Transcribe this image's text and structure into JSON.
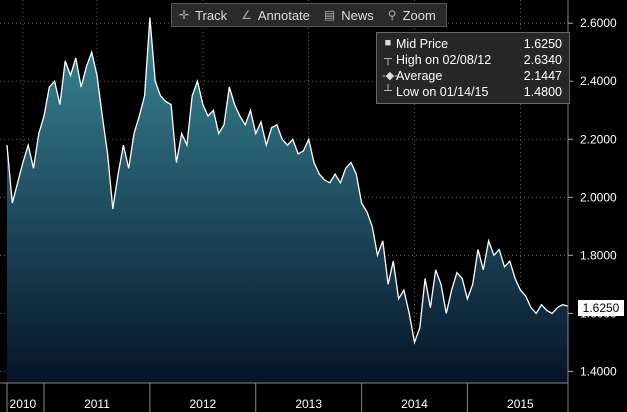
{
  "toolbar": {
    "track_label": "Track",
    "annotate_label": "Annotate",
    "news_label": "News",
    "zoom_label": "Zoom"
  },
  "legend": {
    "mid_label": "Mid Price",
    "mid_value": "1.6250",
    "high_label": "High on 02/08/12",
    "high_value": "2.6340",
    "avg_label": "Average",
    "avg_value": "2.1447",
    "low_label": "Low on 01/14/15",
    "low_value": "1.4800"
  },
  "last_price_tag": "1.6250",
  "colors": {
    "background": "#000000",
    "line": "#ffffff",
    "area_top": "#3b8a99",
    "area_bottom": "#061428",
    "grid": "#7a7a7a"
  },
  "chart_data": {
    "type": "area",
    "ylim": [
      1.36,
      2.68
    ],
    "yticks": [
      "1.4000",
      "1.6000",
      "1.8000",
      "2.0000",
      "2.2000",
      "2.4000",
      "2.6000"
    ],
    "ytick_values": [
      1.4,
      1.6,
      1.8,
      2.0,
      2.2,
      2.4,
      2.6
    ],
    "xlim": [
      2010.65,
      2015.95
    ],
    "xticks": [
      "2010",
      "2011",
      "2012",
      "2013",
      "2014",
      "2015"
    ],
    "xtick_values": [
      2010.8,
      2011.5,
      2012.5,
      2013.5,
      2014.5,
      2015.5
    ],
    "grid": true,
    "series": [
      {
        "name": "Mid Price",
        "x": [
          2010.65,
          2010.7,
          2010.75,
          2010.8,
          2010.85,
          2010.9,
          2010.95,
          2011.0,
          2011.05,
          2011.1,
          2011.15,
          2011.2,
          2011.25,
          2011.3,
          2011.35,
          2011.4,
          2011.45,
          2011.5,
          2011.55,
          2011.6,
          2011.65,
          2011.7,
          2011.75,
          2011.8,
          2011.85,
          2011.9,
          2011.95,
          2012.0,
          2012.05,
          2012.1,
          2012.15,
          2012.2,
          2012.25,
          2012.3,
          2012.35,
          2012.4,
          2012.45,
          2012.5,
          2012.55,
          2012.6,
          2012.65,
          2012.7,
          2012.75,
          2012.8,
          2012.85,
          2012.9,
          2012.95,
          2013.0,
          2013.05,
          2013.1,
          2013.15,
          2013.2,
          2013.25,
          2013.3,
          2013.35,
          2013.4,
          2013.45,
          2013.5,
          2013.55,
          2013.6,
          2013.65,
          2013.7,
          2013.75,
          2013.8,
          2013.85,
          2013.9,
          2013.95,
          2014.0,
          2014.05,
          2014.1,
          2014.15,
          2014.2,
          2014.25,
          2014.3,
          2014.35,
          2014.4,
          2014.45,
          2014.5,
          2014.55,
          2014.6,
          2014.65,
          2014.7,
          2014.75,
          2014.8,
          2014.85,
          2014.9,
          2014.95,
          2015.0,
          2015.05,
          2015.1,
          2015.15,
          2015.2,
          2015.25,
          2015.3,
          2015.35,
          2015.4,
          2015.45,
          2015.5,
          2015.55,
          2015.6,
          2015.65,
          2015.7,
          2015.75,
          2015.8,
          2015.85,
          2015.9,
          2015.95
        ],
        "values": [
          2.18,
          1.98,
          2.05,
          2.12,
          2.18,
          2.1,
          2.22,
          2.28,
          2.38,
          2.4,
          2.32,
          2.47,
          2.42,
          2.48,
          2.38,
          2.45,
          2.5,
          2.42,
          2.28,
          2.15,
          1.96,
          2.08,
          2.18,
          2.1,
          2.22,
          2.28,
          2.35,
          2.62,
          2.4,
          2.35,
          2.33,
          2.32,
          2.12,
          2.22,
          2.18,
          2.35,
          2.4,
          2.32,
          2.28,
          2.3,
          2.22,
          2.25,
          2.38,
          2.32,
          2.28,
          2.25,
          2.3,
          2.22,
          2.26,
          2.18,
          2.24,
          2.25,
          2.2,
          2.18,
          2.2,
          2.15,
          2.16,
          2.2,
          2.12,
          2.08,
          2.06,
          2.05,
          2.08,
          2.05,
          2.1,
          2.12,
          2.08,
          1.98,
          1.95,
          1.9,
          1.8,
          1.85,
          1.7,
          1.78,
          1.65,
          1.68,
          1.6,
          1.5,
          1.55,
          1.72,
          1.62,
          1.75,
          1.7,
          1.6,
          1.68,
          1.74,
          1.72,
          1.65,
          1.7,
          1.82,
          1.75,
          1.85,
          1.8,
          1.82,
          1.76,
          1.78,
          1.72,
          1.68,
          1.66,
          1.62,
          1.6,
          1.63,
          1.61,
          1.6,
          1.62,
          1.63,
          1.625
        ]
      }
    ]
  }
}
